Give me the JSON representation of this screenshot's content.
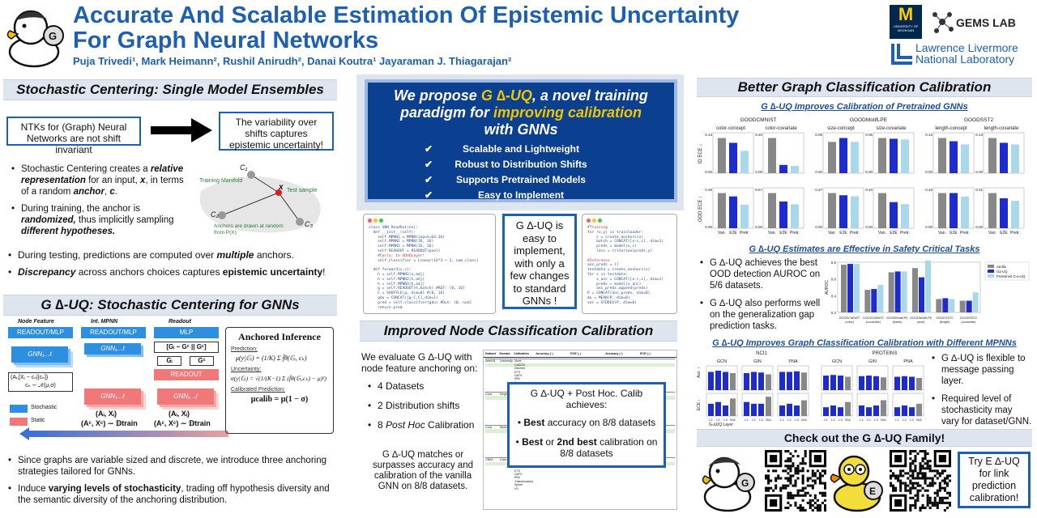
{
  "header": {
    "title_line1": "Accurate And Scalable Estimation Of Epistemic Uncertainty",
    "title_line2": "For Graph Neural Networks",
    "authors": "Puja Trivedi¹, Mark Heimann², Rushil Anirudh², Danai Koutra¹ Jayaraman J. Thiagarajan²",
    "logo_um": "M",
    "logo_um_sub": "UNIVERSITY OF MICHIGAN",
    "logo_gems": "GEMS LAB",
    "logo_llnl_1": "Lawrence Livermore",
    "logo_llnl_2": "National Laboratory"
  },
  "left": {
    "sec1_title": "Stochastic Centering:  Single Model Ensembles",
    "box_left": "NTKs for (Graph) Neural Networks are not shift invariant",
    "box_right": "The variability over shifts captures epistemic uncertainty!",
    "bullet1_a": "Stochastic Centering creates a ",
    "bullet1_b": "relative representation",
    "bullet1_c": " for an input, ",
    "bullet1_d": "x",
    "bullet1_e": ",  in terms of a random ",
    "bullet1_f": "anchor",
    "bullet1_g": ", ",
    "bullet1_h": "c",
    "bullet1_i": ".",
    "bullet2_a": "During training, the anchor is ",
    "bullet2_b": "randomized,",
    "bullet2_c": " thus implicitly sampling ",
    "bullet2_d": "different hypotheses.",
    "diag_training_manifold": "Training Manifold",
    "diag_test_sample": "Test sample",
    "diag_anchors": "Anchors are drawn at random from P(X)",
    "diag_c1": "C₁",
    "diag_c2": "C₂",
    "diag_c3": "C₃",
    "diag_x": "x",
    "bullet3_a": "During testing, predictions are computed over ",
    "bullet3_b": "multiple",
    "bullet3_c": " anchors.",
    "bullet4_a": "Discrepancy",
    "bullet4_b": " across anchors choices captures ",
    "bullet4_c": "epistemic uncertainty",
    "bullet4_d": "!",
    "sec2_title": "G ∆-UQ: Stochastic Centering for GNNs",
    "arch_node_feature": "Node Feature",
    "arch_int_mpnn": "Int. MPNN",
    "arch_readout": "Readout",
    "arch_readout_mlp": "READOUT/MLP",
    "arch_mlp": "MLP",
    "arch_gnn": "GNN₁...ℓ",
    "arch_readout2": "READOUT",
    "arch_legend_stochastic": "Stochastic",
    "arch_legend_static": "Static",
    "arch_formula_left": "(Aᵢ,[Xᵢ − cₙ||cₙ])",
    "arch_formula_mu": "cₙ ∼ 𝒩(μ,σ)",
    "arch_formula_ai_xi": "(Aᵢ, Xᵢ)",
    "arch_formula_train": "(Aᶜ, Xᶜ) ∼ 𝔻train",
    "arch_gcat": "[Gᵢ − Gᶜ || Gᶜ]",
    "arch_gi": "Gᵢ",
    "arch_gc": "Gᶜ",
    "inf_title": "Anchored Inference",
    "inf_prediction": "Prediction:",
    "inf_pred_formula": "μ(y|𝔾ᵢ) = (1/K) Σ f̂θ(𝔾ᵢ, cₖ)",
    "inf_uncertainty": "Uncertainty:",
    "inf_unc_formula": "σ(y|𝔾ᵢ) = √(1/(K−1) Σ (f̂θ(𝔾ᵢ,cₖ) − μ)²)",
    "inf_calibrated": "Calibrated Prediction:",
    "inf_calib_formula": "μcalib = μ(1 − σ)",
    "bullet5": "Since graphs are variable sized and discrete, we introduce three anchoring strategies tailored for GNNs.",
    "bullet6_a": "Induce ",
    "bullet6_b": "varying levels of stochasticity",
    "bullet6_c": ", trading off hypothesis diversity and the semantic diversity of the anchoring distribution."
  },
  "middle": {
    "hero_1": "We propose ",
    "hero_2": "G ∆-UQ",
    "hero_3": ", a novel training",
    "hero_4": "paradigm for ",
    "hero_5": "improving calibration",
    "hero_6": "with GNNs",
    "checks": [
      "Scalable and Lightweight",
      "Robust to Distribution Shifts",
      "Supports Pretrained Models",
      "Easy to Implement"
    ],
    "check_mark": "✔",
    "easy_box": "G ∆-UQ is easy to implement, with only a few changes to standard GNNs !",
    "code_left": [
      "class GNN_ReadOut(nn):",
      "  def __init__(self):",
      "    self.MPNN1 = MPNN(input=64,16)",
      "    self.MPNN2 = MPNN(16, 16)",
      "    self.MPNN3 = MPNN(16, 16)",
      "    self.READOUT = READOUT(pool)",
      "    #Carry: to GDUQLayer!",
      "    self.classifier = Linear(16*3 + 2, num_class)",
      "",
      "  def forward(x,c):",
      "    h = self.MPNN1(x,adj)",
      "    h = self.MPNN2(h,adj)",
      "    h = self.MPNN3(h,adj)",
      "    g = self.READOUT(h,batch) #REF: [0, 16]",
      "    C = SHUFFLE(g, dim=0) #[0, 16]",
      "    gdu = CONCAT([g-C,C],dim=1)",
      "    pred = self.classifier(gdu) #Out: [0, num]",
      "    return pred"
    ],
    "code_right": [
      "#Training",
      "for (x,y) in trainloader:",
      "    c = create_anchors(x)",
      "    batch = CONCAT([x-c,c], dim=1)",
      "    preds = model(x,c)",
      "    loss = criterion(preds,y)",
      "",
      "#Inference",
      "anc_preds = []",
      "testdata = create_anchors(x)",
      "for c in testdata:",
      "    x_anc = CONCAT([x-c,c], dim=1)",
      "    preds = model(x_anc)",
      "    anc_preds.append(preds)",
      "P = CONCAT(anc_preds, dim=0)",
      "mu = MEAN(P, dim=0)",
      "var = STDDEV(P, dim=0)"
    ],
    "sec_title": "Improved Node Classification Calibration",
    "eval_text": "We evaluate G ∆-UQ with node feature anchoring on:",
    "eval_bullets": [
      "4 Datasets",
      "2 Distribution shifts",
      "8 Post Hoc Calibration"
    ],
    "eval_bullet3_a": "8 ",
    "eval_bullet3_b": "Post Hoc",
    "eval_bullet3_c": " Calibration",
    "match_text": "G ∆-UQ matches or surpasses accuracy and calibration of the vanilla GNN on 8/8 datasets.",
    "overlay_title": "G ∆-UQ + Post Hoc. Calib achieves:",
    "overlay_b1_a": "Best",
    "overlay_b1_b": " accuracy on 8/8 datasets",
    "overlay_b2_a": "Best",
    "overlay_b2_b": " or ",
    "overlay_b2_c": "2nd best",
    "overlay_b2_d": " calibration on 8/8  datasets",
    "table_col_headers": [
      "Dataset",
      "Domain",
      "Calibration",
      "Accuracy (↑)",
      "ECE (↓)",
      "Accuracy (↑)",
      "ECE (↓)"
    ],
    "table_datasets": [
      "WebKB",
      "Cora",
      "Cora",
      "CBAS"
    ],
    "table_domains": [
      "University",
      "Degree",
      "Word",
      "Color"
    ],
    "table_methods": [
      "None",
      "CaGCN",
      "Dirichlet",
      "ETS",
      "GATS",
      "IRM",
      "Orderinvariant",
      "Spline",
      "VS"
    ]
  },
  "right": {
    "sec_title": "Better Graph Classification Calibration",
    "sub1": "G ∆-UQ Improves Calibration of Pretrained GNNs",
    "groups": [
      {
        "name": "GOODCMNIST",
        "left": "color-concept",
        "right": "color-covariate"
      },
      {
        "name": "GOODMotifLPE",
        "left": "size-concept",
        "right": "size-covariate"
      },
      {
        "name": "GOODSST2",
        "left": "length-concept",
        "right": "length-covariate"
      }
    ],
    "ylabel_id": "ID ECE ↓",
    "ylabel_ood": "OOD ECE ↓",
    "xticks": [
      "Van.",
      "E2E",
      "Pretr."
    ],
    "sub2": "G ∆-UQ Estimates are Effective in Safety Critical Tasks",
    "safety_b1": "G ∆-UQ achieves the best OOD detection AUROC on 5/6 datasets.",
    "safety_b2": "G ∆-UQ also performs well on the generalization gap prediction tasks.",
    "auroc_ylabel": "AUROC",
    "auroc_legend": [
      "vanilla",
      "G∆-UQ",
      "Pretrained G-∆-UQ"
    ],
    "auroc_categories": [
      "GOODCMNIST (color)",
      "GOODCMNIST (covariate)",
      "GOODMotifLPE (basis)",
      "GOODMotifLPE (size)",
      "GOODSST2 (length)",
      "GOODSST2 (covariate)"
    ],
    "sub3": "G ∆-UQ Improves Graph Classification Calibration with Different MPNNs",
    "mpnn_datasets": [
      "NCI1",
      "PROTEINS"
    ],
    "mpnn_models": [
      "GCN",
      "GIN",
      "PNA"
    ],
    "mpnn_acc": "Acc. ↑",
    "mpnn_ece": "ECE ↓",
    "mpnn_xlabel": "G-∆UQ Layer",
    "mpnn_xticks": [
      "L1",
      "L2",
      "L3",
      "N/A"
    ],
    "mpnn_b1": "G ∆-UQ is flexible to message passing layer.",
    "mpnn_b2": "Required level of stochasticity may vary for dataset/GNN.",
    "family_title": "Check out the G ∆-UQ Family!",
    "try_box": "Try E ∆-UQ for link prediction calibration!",
    "duck_badge_1": "G",
    "duck_badge_2": "E"
  },
  "chart_data": [
    {
      "type": "bar",
      "title": "GOODCMNIST",
      "panels": [
        {
          "name": "color-concept",
          "categories": [
            "Van.",
            "E2E",
            "Pretr."
          ],
          "id_ece": [
            0.11,
            0.095,
            0.07
          ],
          "ood_ece": [
            0.42,
            0.38,
            0.28
          ]
        },
        {
          "name": "color-covariate",
          "categories": [
            "Van.",
            "E2E",
            "Pretr."
          ],
          "id_ece": [
            0.17,
            0.04,
            0.035
          ],
          "ood_ece": [
            0.5,
            0.38,
            0.34
          ]
        }
      ]
    },
    {
      "type": "bar",
      "title": "GOODMotifLPE",
      "panels": [
        {
          "name": "size-concept",
          "categories": [
            "Van.",
            "E2E",
            "Pretr."
          ],
          "id_ece": [
            0.04,
            0.045,
            0.04
          ],
          "ood_ece": [
            0.32,
            0.3,
            0.29
          ]
        },
        {
          "name": "size-covariate",
          "categories": [
            "Van.",
            "E2E",
            "Pretr."
          ],
          "id_ece": [
            0.048,
            0.047,
            0.046
          ],
          "ood_ece": [
            0.35,
            0.26,
            0.24
          ]
        }
      ]
    },
    {
      "type": "bar",
      "title": "GOODSST2",
      "panels": [
        {
          "name": "length-concept",
          "categories": [
            "Van.",
            "E2E",
            "Pretr."
          ],
          "id_ece": [
            0.11,
            0.1,
            0.09
          ],
          "ood_ece": [
            0.29,
            0.29,
            0.26
          ]
        },
        {
          "name": "length-covariate",
          "categories": [
            "Van.",
            "E2E",
            "Pretr."
          ],
          "id_ece": [
            0.11,
            0.095,
            0.09
          ],
          "ood_ece": [
            0.27,
            0.23,
            0.21
          ]
        }
      ]
    },
    {
      "type": "bar",
      "ylabel": "AUROC",
      "categories": [
        "GOODCMNIST (color)",
        "GOODCMNIST (covariate)",
        "GOODMotifLPE (basis)",
        "GOODMotifLPE (size)",
        "GOODSST2 (length)",
        "GOODSST2 (covariate)"
      ],
      "series": [
        {
          "name": "vanilla",
          "values": [
            0.77,
            0.47,
            0.68,
            0.73,
            0.36,
            0.34
          ]
        },
        {
          "name": "G∆-UQ",
          "values": [
            0.78,
            0.48,
            0.69,
            0.62,
            0.37,
            0.34
          ]
        },
        {
          "name": "Pretrained G-∆-UQ",
          "values": [
            0.78,
            0.53,
            0.69,
            0.82,
            0.36,
            0.44
          ]
        }
      ],
      "ylim": [
        0.2,
        0.8
      ],
      "colors": [
        "#888888",
        "#1f2ccc",
        "#a8d8ea"
      ]
    },
    {
      "type": "bar",
      "xlabel": "G-∆UQ Layer",
      "categories": [
        "L1",
        "L2",
        "L3",
        "N/A"
      ],
      "panels": [
        {
          "dataset": "NCI1",
          "model": "GCN",
          "acc": [
            0.8,
            0.82,
            0.8,
            0.78
          ],
          "ece": [
            0.07,
            0.08,
            0.06,
            0.1
          ]
        },
        {
          "dataset": "NCI1",
          "model": "GIN",
          "acc": [
            0.78,
            0.8,
            0.79,
            0.76
          ],
          "ece": [
            0.08,
            0.07,
            0.07,
            0.11
          ]
        },
        {
          "dataset": "NCI1",
          "model": "PNA",
          "acc": [
            0.8,
            0.8,
            0.81,
            0.79
          ],
          "ece": [
            0.06,
            0.07,
            0.06,
            0.09
          ]
        },
        {
          "dataset": "PROTEINS",
          "model": "GCN",
          "acc": [
            0.74,
            0.75,
            0.74,
            0.72
          ],
          "ece": [
            0.05,
            0.06,
            0.05,
            0.08
          ]
        },
        {
          "dataset": "PROTEINS",
          "model": "GIN",
          "acc": [
            0.73,
            0.74,
            0.73,
            0.71
          ],
          "ece": [
            0.06,
            0.05,
            0.06,
            0.09
          ]
        },
        {
          "dataset": "PROTEINS",
          "model": "PNA",
          "acc": [
            0.72,
            0.73,
            0.72,
            0.7
          ],
          "ece": [
            0.05,
            0.06,
            0.05,
            0.07
          ]
        }
      ]
    }
  ],
  "colors": {
    "title_blue": "#1d5fb0",
    "hero_bg": "#0b3f8f",
    "gold": "#f2c400",
    "vanilla": "#888888",
    "gduq": "#1f2ccc",
    "pretr": "#a8d8ea",
    "stochastic": "#2e8ee0",
    "static": "#f07878"
  }
}
